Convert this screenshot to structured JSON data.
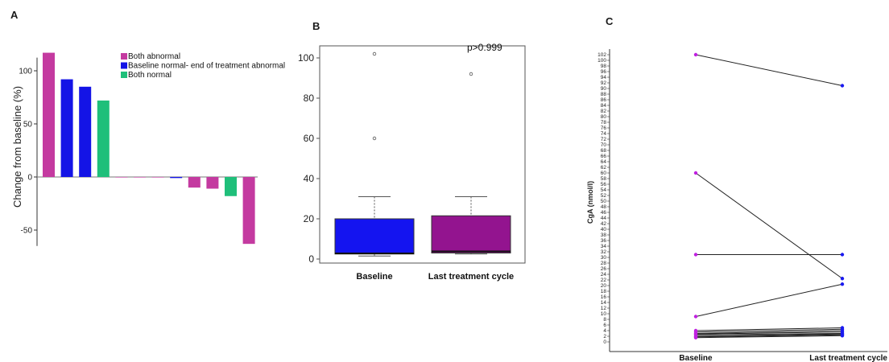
{
  "panels": {
    "a": "A",
    "b": "B",
    "c": "C"
  },
  "chart_data": [
    {
      "panel": "A",
      "type": "bar",
      "ylabel": "Change from baseline (%)",
      "ylim": [
        -65,
        120
      ],
      "yticks": [
        -50,
        0,
        50,
        100
      ],
      "xlabel": "",
      "legend": {
        "placement": "top-right",
        "entries": [
          {
            "label": "Both abnormal",
            "color": "#c43aa0"
          },
          {
            "label": "Baseline normal- end of treatment abnormal",
            "color": "#1414e6"
          },
          {
            "label": "Both normal",
            "color": "#1fbf7a"
          }
        ]
      },
      "bars": [
        {
          "value": 117,
          "group": 0
        },
        {
          "value": 92,
          "group": 1
        },
        {
          "value": 85,
          "group": 1
        },
        {
          "value": 72,
          "group": 2
        },
        {
          "value": 0,
          "group": 0
        },
        {
          "value": 0,
          "group": 0
        },
        {
          "value": 0,
          "group": 0
        },
        {
          "value": -1,
          "group": 1
        },
        {
          "value": -10,
          "group": 0
        },
        {
          "value": -11,
          "group": 0
        },
        {
          "value": -18,
          "group": 2
        },
        {
          "value": -63,
          "group": 0
        }
      ]
    },
    {
      "panel": "B",
      "type": "box",
      "ylim": [
        -2,
        106
      ],
      "yticks": [
        0,
        20,
        40,
        60,
        80,
        100
      ],
      "annotation": "p>0.999",
      "categories": [
        "Baseline",
        "Last treatment cycle"
      ],
      "boxes": [
        {
          "name": "Baseline",
          "color": "#1414f0",
          "whisker_low": 1.5,
          "q1": 2.5,
          "median": 2.8,
          "q3": 20,
          "whisker_high": 31,
          "outliers": [
            60,
            102
          ]
        },
        {
          "name": "Last treatment cycle",
          "color": "#93148f",
          "whisker_low": 2.5,
          "q1": 3,
          "median": 3.8,
          "q3": 21.5,
          "whisker_high": 31,
          "outliers": [
            92
          ]
        }
      ]
    },
    {
      "panel": "C",
      "type": "line",
      "ylabel": "CgA (nmol/l)",
      "ylim": [
        0,
        104
      ],
      "ytick_step": 2,
      "categories": [
        "Baseline",
        "Last treatment cycle"
      ],
      "colors": {
        "baseline": "#c020e0",
        "last": "#1a1af0"
      },
      "pairs": [
        [
          102,
          91
        ],
        [
          60,
          22.5
        ],
        [
          31,
          31
        ],
        [
          9,
          20.5
        ],
        [
          4,
          5
        ],
        [
          3.5,
          4.5
        ],
        [
          3,
          4
        ],
        [
          2.8,
          3.5
        ],
        [
          2.5,
          3
        ],
        [
          2,
          2.8
        ],
        [
          1.8,
          2.5
        ],
        [
          1.5,
          2.2
        ]
      ]
    }
  ]
}
